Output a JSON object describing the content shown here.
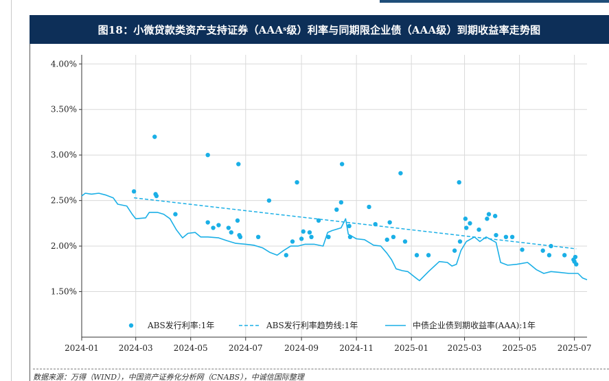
{
  "title": {
    "prefix": "图18：小微贷款类资产支持证券（AAA",
    "sub": "s",
    "suffix": "级）利率与同期限企业债（AAA级）到期收益率走势图"
  },
  "footer": "数据来源：万得（WIND），中国资产证券化分析网（CNABS），中诚信国际整理",
  "colors": {
    "title_bg": "#0d2f58",
    "series": "#1aafe6",
    "grid": "#d9d9d9"
  },
  "chart_data": {
    "type": "scatter+line",
    "x_ticks": [
      "2024-01",
      "2024-03",
      "2024-05",
      "2024-07",
      "2024-09",
      "2024-11",
      "2025-01",
      "2025-03",
      "2025-05",
      "2025-07"
    ],
    "y_ticks": [
      "4.00%",
      "3.50%",
      "3.00%",
      "2.50%",
      "2.00%",
      "1.50%"
    ],
    "y_tick_values": [
      4.0,
      3.5,
      3.0,
      2.5,
      2.0,
      1.5
    ],
    "ylim": [
      1.0,
      4.1
    ],
    "xlim": [
      "2024-01-01",
      "2025-07-15"
    ],
    "grid": true,
    "legend_position": "bottom-inside",
    "series": [
      {
        "name": "ABS发行利率:1年",
        "kind": "scatter",
        "points": [
          [
            "2024-02-28",
            2.6
          ],
          [
            "2024-03-22",
            3.2
          ],
          [
            "2024-03-23",
            2.57
          ],
          [
            "2024-03-24",
            2.55
          ],
          [
            "2024-04-14",
            2.35
          ],
          [
            "2024-05-20",
            3.0
          ],
          [
            "2024-05-20",
            2.26
          ],
          [
            "2024-05-26",
            2.2
          ],
          [
            "2024-06-01",
            2.23
          ],
          [
            "2024-06-12",
            2.2
          ],
          [
            "2024-06-15",
            2.15
          ],
          [
            "2024-06-22",
            2.28
          ],
          [
            "2024-06-23",
            2.9
          ],
          [
            "2024-06-24",
            2.12
          ],
          [
            "2024-06-25",
            2.1
          ],
          [
            "2024-07-15",
            2.1
          ],
          [
            "2024-07-27",
            2.5
          ],
          [
            "2024-08-15",
            1.9
          ],
          [
            "2024-08-22",
            2.05
          ],
          [
            "2024-08-27",
            2.7
          ],
          [
            "2024-09-01",
            2.08
          ],
          [
            "2024-09-03",
            2.16
          ],
          [
            "2024-09-10",
            2.15
          ],
          [
            "2024-09-12",
            2.1
          ],
          [
            "2024-09-20",
            2.28
          ],
          [
            "2024-10-01",
            2.1
          ],
          [
            "2024-10-10",
            2.4
          ],
          [
            "2024-10-15",
            2.48
          ],
          [
            "2024-10-16",
            2.9
          ],
          [
            "2024-10-24",
            2.22
          ],
          [
            "2024-10-25",
            2.1
          ],
          [
            "2024-11-15",
            2.43
          ],
          [
            "2024-11-22",
            2.24
          ],
          [
            "2024-12-05",
            2.07
          ],
          [
            "2024-12-08",
            2.26
          ],
          [
            "2024-12-12",
            2.1
          ],
          [
            "2024-12-20",
            2.8
          ],
          [
            "2024-12-25",
            2.05
          ],
          [
            "2025-01-07",
            1.9
          ],
          [
            "2025-01-20",
            1.9
          ],
          [
            "2025-02-18",
            1.95
          ],
          [
            "2025-02-23",
            2.7
          ],
          [
            "2025-02-24",
            2.05
          ],
          [
            "2025-03-02",
            2.3
          ],
          [
            "2025-03-03",
            2.2
          ],
          [
            "2025-03-07",
            2.25
          ],
          [
            "2025-03-17",
            2.18
          ],
          [
            "2025-03-26",
            2.3
          ],
          [
            "2025-03-28",
            2.35
          ],
          [
            "2025-04-04",
            2.33
          ],
          [
            "2025-04-05",
            2.12
          ],
          [
            "2025-04-16",
            2.1
          ],
          [
            "2025-04-23",
            2.1
          ],
          [
            "2025-05-04",
            1.96
          ],
          [
            "2025-05-27",
            1.95
          ],
          [
            "2025-06-03",
            1.9
          ],
          [
            "2025-06-05",
            2.0
          ],
          [
            "2025-06-20",
            1.9
          ],
          [
            "2025-06-30",
            1.85
          ],
          [
            "2025-07-01",
            1.83
          ],
          [
            "2025-07-02",
            1.88
          ],
          [
            "2025-07-03",
            1.8
          ]
        ]
      },
      {
        "name": "ABS发行利率趋势线:1年",
        "kind": "dashed-line",
        "points": [
          [
            "2024-02-28",
            2.53
          ],
          [
            "2025-07-03",
            1.97
          ]
        ]
      },
      {
        "name": "中债企业债到期收益率(AAA):1年",
        "kind": "line",
        "points": [
          [
            "2024-01-01",
            2.55
          ],
          [
            "2024-01-05",
            2.58
          ],
          [
            "2024-01-12",
            2.57
          ],
          [
            "2024-01-20",
            2.58
          ],
          [
            "2024-01-28",
            2.56
          ],
          [
            "2024-02-05",
            2.53
          ],
          [
            "2024-02-10",
            2.46
          ],
          [
            "2024-02-20",
            2.44
          ],
          [
            "2024-02-26",
            2.35
          ],
          [
            "2024-03-01",
            2.3
          ],
          [
            "2024-03-12",
            2.31
          ],
          [
            "2024-03-16",
            2.37
          ],
          [
            "2024-03-25",
            2.37
          ],
          [
            "2024-04-01",
            2.35
          ],
          [
            "2024-04-08",
            2.3
          ],
          [
            "2024-04-15",
            2.18
          ],
          [
            "2024-04-22",
            2.09
          ],
          [
            "2024-04-28",
            2.14
          ],
          [
            "2024-05-06",
            2.15
          ],
          [
            "2024-05-12",
            2.1
          ],
          [
            "2024-05-20",
            2.1
          ],
          [
            "2024-06-01",
            2.09
          ],
          [
            "2024-06-10",
            2.06
          ],
          [
            "2024-06-20",
            2.03
          ],
          [
            "2024-07-01",
            2.02
          ],
          [
            "2024-07-10",
            2.01
          ],
          [
            "2024-07-20",
            1.98
          ],
          [
            "2024-07-28",
            1.93
          ],
          [
            "2024-08-05",
            1.9
          ],
          [
            "2024-08-12",
            1.95
          ],
          [
            "2024-08-20",
            2.0
          ],
          [
            "2024-08-28",
            2.0
          ],
          [
            "2024-09-05",
            2.02
          ],
          [
            "2024-09-15",
            2.02
          ],
          [
            "2024-09-25",
            2.0
          ],
          [
            "2024-09-30",
            2.15
          ],
          [
            "2024-10-05",
            2.17
          ],
          [
            "2024-10-15",
            2.2
          ],
          [
            "2024-10-20",
            2.3
          ],
          [
            "2024-10-23",
            2.13
          ],
          [
            "2024-11-01",
            2.08
          ],
          [
            "2024-11-10",
            2.07
          ],
          [
            "2024-11-20",
            2.01
          ],
          [
            "2024-11-28",
            2.0
          ],
          [
            "2024-12-05",
            1.92
          ],
          [
            "2024-12-10",
            1.85
          ],
          [
            "2024-12-15",
            1.75
          ],
          [
            "2024-12-22",
            1.73
          ],
          [
            "2024-12-28",
            1.72
          ],
          [
            "2025-01-06",
            1.65
          ],
          [
            "2025-01-10",
            1.62
          ],
          [
            "2025-01-20",
            1.72
          ],
          [
            "2025-02-01",
            1.83
          ],
          [
            "2025-02-10",
            1.82
          ],
          [
            "2025-02-15",
            1.78
          ],
          [
            "2025-02-20",
            1.8
          ],
          [
            "2025-02-25",
            1.95
          ],
          [
            "2025-03-03",
            2.05
          ],
          [
            "2025-03-12",
            2.1
          ],
          [
            "2025-03-18",
            2.05
          ],
          [
            "2025-03-25",
            2.1
          ],
          [
            "2025-04-05",
            2.04
          ],
          [
            "2025-04-10",
            1.82
          ],
          [
            "2025-04-18",
            1.79
          ],
          [
            "2025-04-28",
            1.8
          ],
          [
            "2025-05-10",
            1.82
          ],
          [
            "2025-05-20",
            1.74
          ],
          [
            "2025-05-28",
            1.7
          ],
          [
            "2025-06-05",
            1.72
          ],
          [
            "2025-06-15",
            1.71
          ],
          [
            "2025-06-25",
            1.7
          ],
          [
            "2025-07-05",
            1.7
          ],
          [
            "2025-07-10",
            1.65
          ],
          [
            "2025-07-15",
            1.63
          ]
        ]
      }
    ]
  }
}
